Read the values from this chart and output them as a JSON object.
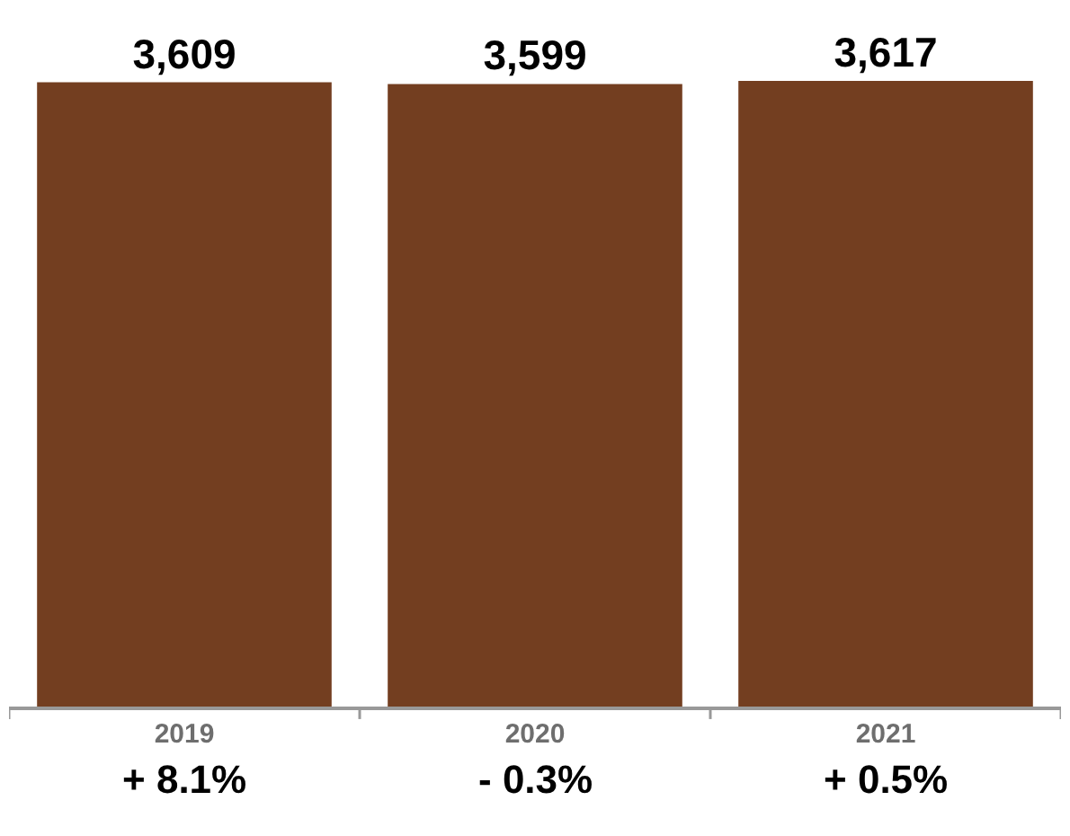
{
  "chart_data": {
    "type": "bar",
    "categories": [
      "2019",
      "2020",
      "2021"
    ],
    "values": [
      3609,
      3599,
      3617
    ],
    "value_labels": [
      "3,609",
      "3,599",
      "3,617"
    ],
    "color": "#733e20",
    "annotations": [
      "+ 8.1%",
      "- 0.3%",
      "+ 0.5%"
    ]
  }
}
